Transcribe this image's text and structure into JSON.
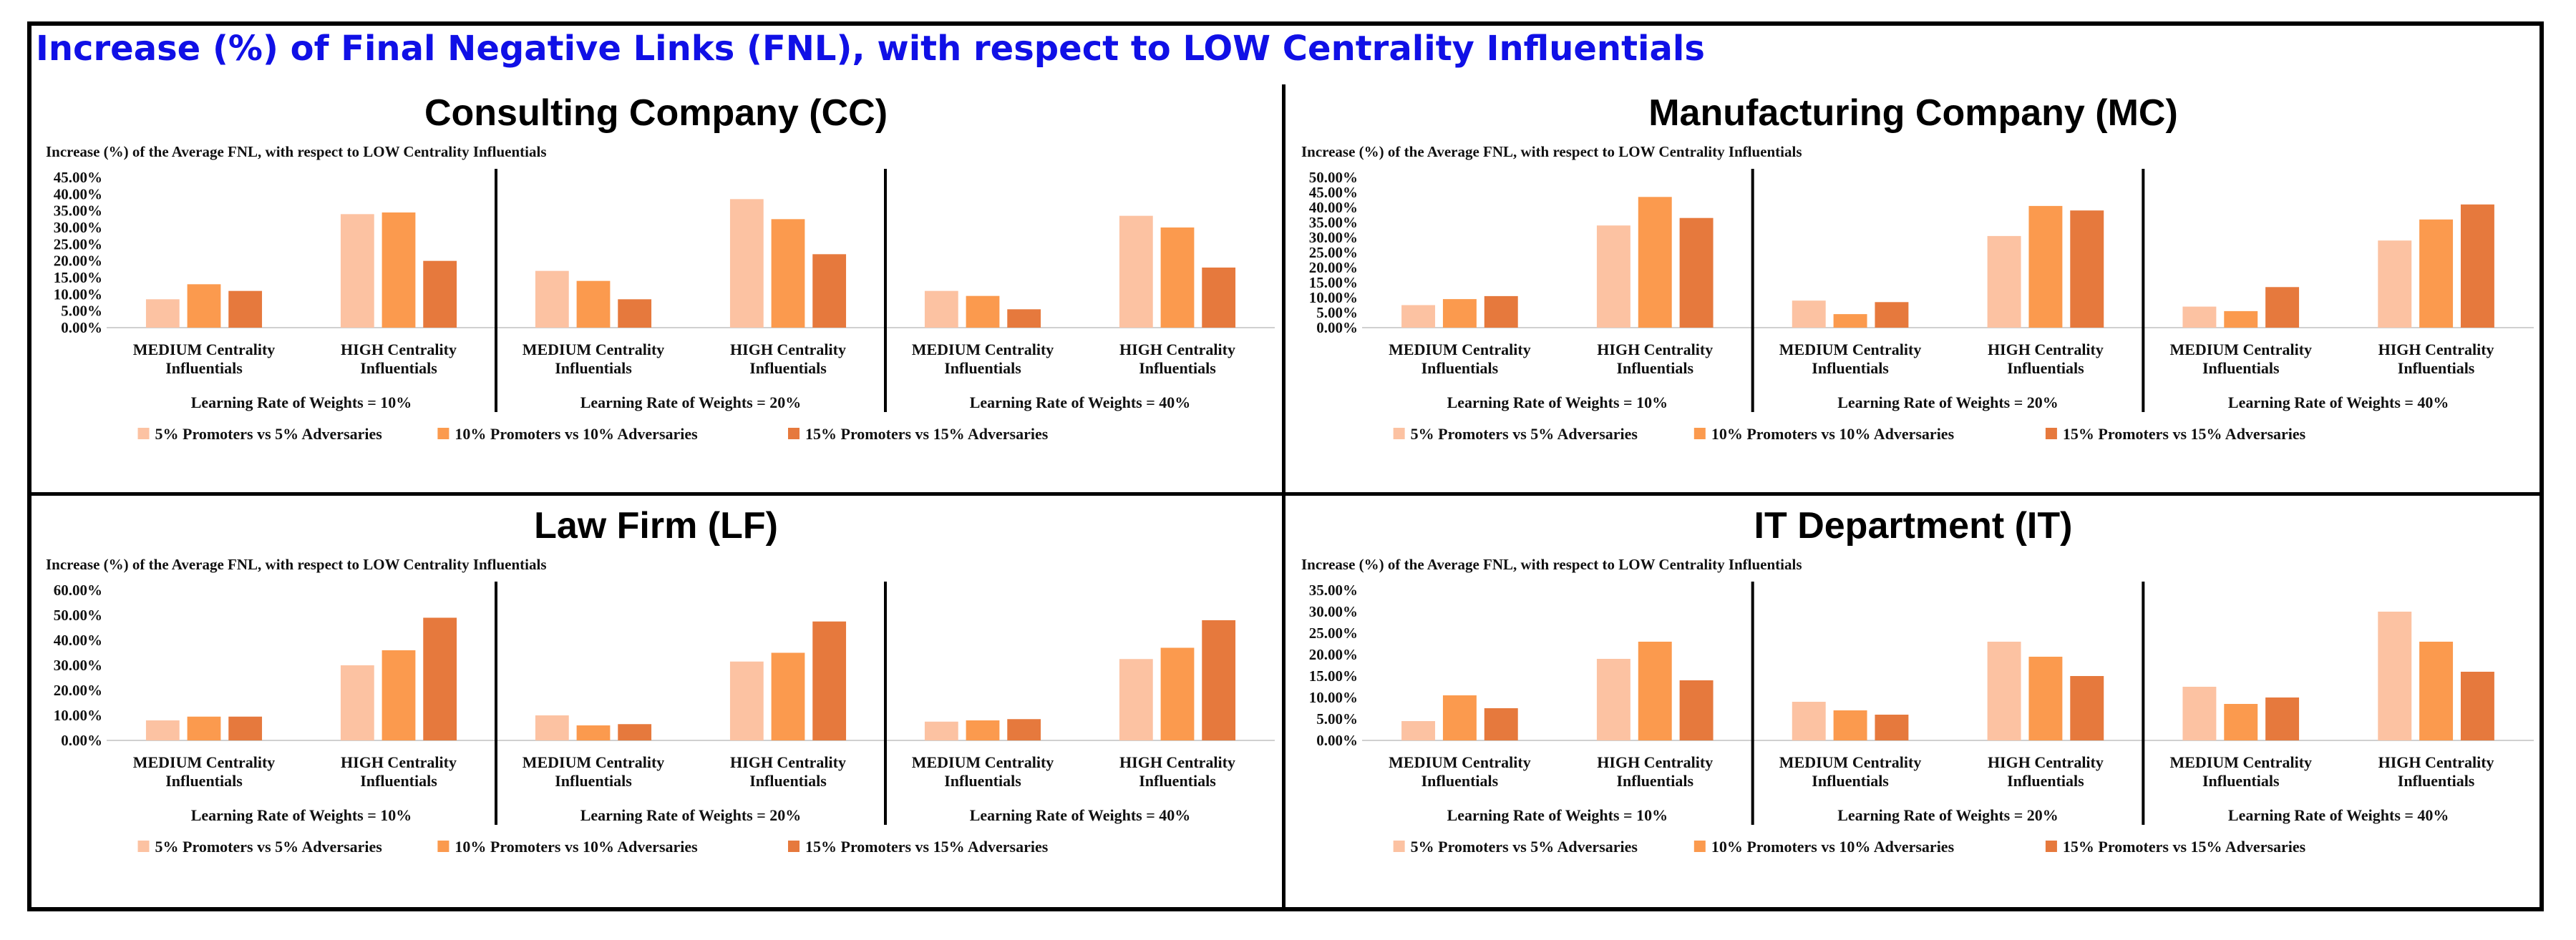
{
  "main_title": "Increase (%) of Final Negative Links (FNL), with respect to LOW Centrality Influentials",
  "colors": {
    "title": "#1010e6",
    "series": [
      "#fcc2a2",
      "#fb9a4e",
      "#e6793d"
    ]
  },
  "chart_data": [
    {
      "type": "bar",
      "title": "Consulting Company (CC)",
      "subtitle": "Increase (%) of the Average FNL, with respect to LOW Centrality Influentials",
      "ylim": [
        0,
        45
      ],
      "yticks": [
        "0.00%",
        "5.00%",
        "10.00%",
        "15.00%",
        "20.00%",
        "25.00%",
        "30.00%",
        "35.00%",
        "40.00%",
        "45.00%"
      ],
      "groups": [
        "Learning Rate of Weights = 10%",
        "Learning Rate of Weights = 20%",
        "Learning Rate of Weights = 40%"
      ],
      "categories": [
        "MEDIUM Centrality\nInfluentials",
        "HIGH Centrality\nInfluentials"
      ],
      "series_names": [
        "5% Promoters vs 5% Adversaries",
        "10% Promoters vs 10% Adversaries",
        "15% Promoters vs 15% Adversaries"
      ],
      "values": [
        [
          [
            8.5,
            13,
            11
          ],
          [
            34,
            34.5,
            20
          ]
        ],
        [
          [
            17,
            14,
            8.5
          ],
          [
            38.5,
            32.5,
            22
          ]
        ],
        [
          [
            11,
            9.5,
            5.5
          ],
          [
            33.5,
            30,
            18
          ]
        ]
      ]
    },
    {
      "type": "bar",
      "title": "Manufacturing Company (MC)",
      "subtitle": "Increase (%) of the Average FNL, with respect to LOW Centrality Influentials",
      "ylim": [
        0,
        50
      ],
      "yticks": [
        "0.00%",
        "5.00%",
        "10.00%",
        "15.00%",
        "20.00%",
        "25.00%",
        "30.00%",
        "35.00%",
        "40.00%",
        "45.00%",
        "50.00%"
      ],
      "groups": [
        "Learning Rate of Weights = 10%",
        "Learning Rate of Weights = 20%",
        "Learning Rate of Weights = 40%"
      ],
      "categories": [
        "MEDIUM Centrality\nInfluentials",
        "HIGH Centrality\nInfluentials"
      ],
      "series_names": [
        "5% Promoters vs 5% Adversaries",
        "10% Promoters vs 10% Adversaries",
        "15% Promoters vs 15% Adversaries"
      ],
      "values": [
        [
          [
            7.5,
            9.5,
            10.5
          ],
          [
            34,
            43.5,
            36.5
          ]
        ],
        [
          [
            9,
            4.5,
            8.5
          ],
          [
            30.5,
            40.5,
            39
          ]
        ],
        [
          [
            7,
            5.5,
            13.5
          ],
          [
            29,
            36,
            41
          ]
        ]
      ]
    },
    {
      "type": "bar",
      "title": "Law Firm (LF)",
      "subtitle": "Increase (%) of the Average FNL, with respect to LOW Centrality Influentials",
      "ylim": [
        0,
        60
      ],
      "yticks": [
        "0.00%",
        "10.00%",
        "20.00%",
        "30.00%",
        "40.00%",
        "50.00%",
        "60.00%"
      ],
      "groups": [
        "Learning Rate of Weights = 10%",
        "Learning Rate of Weights = 20%",
        "Learning Rate of Weights = 40%"
      ],
      "categories": [
        "MEDIUM Centrality\nInfluentials",
        "HIGH Centrality\nInfluentials"
      ],
      "series_names": [
        "5% Promoters vs 5% Adversaries",
        "10% Promoters vs 10% Adversaries",
        "15% Promoters vs 15% Adversaries"
      ],
      "values": [
        [
          [
            8,
            9.5,
            9.5
          ],
          [
            30,
            36,
            49
          ]
        ],
        [
          [
            10,
            6,
            6.5
          ],
          [
            31.5,
            35,
            47.5
          ]
        ],
        [
          [
            7.5,
            8,
            8.5
          ],
          [
            32.5,
            37,
            48
          ]
        ]
      ]
    },
    {
      "type": "bar",
      "title": "IT Department (IT)",
      "subtitle": "Increase (%) of the Average FNL, with respect to LOW Centrality Influentials",
      "ylim": [
        0,
        35
      ],
      "yticks": [
        "0.00%",
        "5.00%",
        "10.00%",
        "15.00%",
        "20.00%",
        "25.00%",
        "30.00%",
        "35.00%"
      ],
      "groups": [
        "Learning Rate of Weights = 10%",
        "Learning Rate of Weights = 20%",
        "Learning Rate of Weights = 40%"
      ],
      "categories": [
        "MEDIUM Centrality\nInfluentials",
        "HIGH Centrality\nInfluentials"
      ],
      "series_names": [
        "5% Promoters vs 5% Adversaries",
        "10% Promoters vs 10% Adversaries",
        "15% Promoters vs 15% Adversaries"
      ],
      "values": [
        [
          [
            4.5,
            10.5,
            7.5
          ],
          [
            19,
            23,
            14
          ]
        ],
        [
          [
            9,
            7,
            6
          ],
          [
            23,
            19.5,
            15
          ]
        ],
        [
          [
            12.5,
            8.5,
            10
          ],
          [
            30,
            23,
            16
          ]
        ]
      ]
    }
  ]
}
